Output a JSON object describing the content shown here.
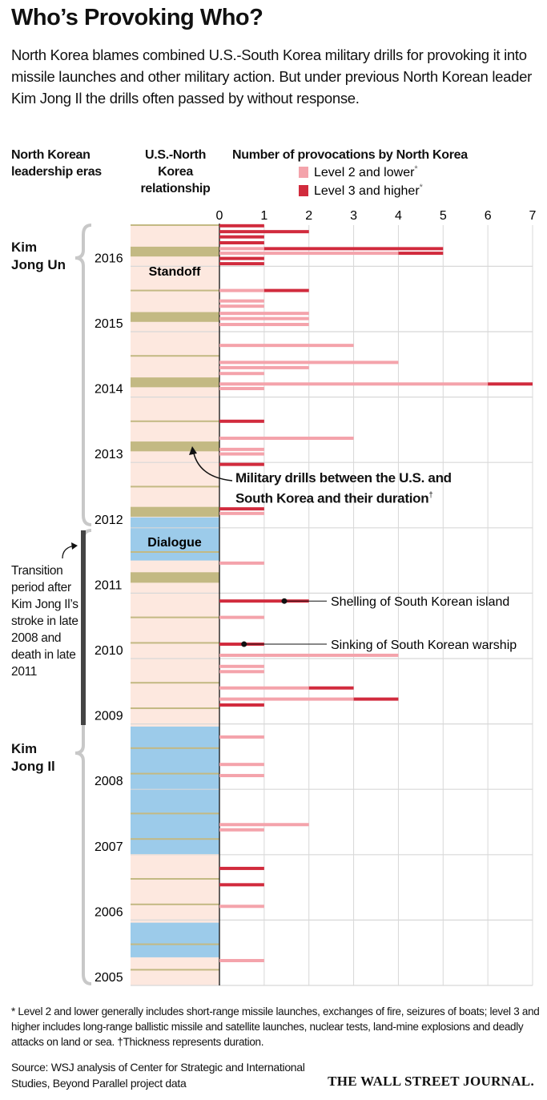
{
  "header": {
    "title": "Who’s Provoking Who?",
    "subtitle": "North Korea blames combined U.S.-South Korea military drills for provoking it into missile launches and other military action. But under previous North Korean leader Kim Jong Il the drills often passed by without response."
  },
  "column_headers": {
    "eras": "North Korean leadership eras",
    "relationship": "U.S.-North Korea relationship",
    "provocations": "Number of provocations by North Korea"
  },
  "chart_data": {
    "type": "bar",
    "orientation": "horizontal",
    "stacked": true,
    "series": [
      {
        "name": "Level 2 and lower",
        "marker": "*",
        "color": "#f4a3ab",
        "values": [
          0,
          0,
          0,
          0,
          1,
          4,
          0,
          0,
          1,
          1,
          1,
          2,
          2,
          2,
          3,
          4,
          2,
          1,
          6,
          1,
          0,
          3,
          1,
          1,
          0,
          0,
          1,
          1,
          0,
          1,
          0,
          4,
          1,
          1,
          2,
          3,
          0,
          1,
          1,
          1,
          2,
          1,
          0,
          0,
          1,
          1
        ]
      },
      {
        "name": "Level 3 and higher",
        "marker": "*",
        "color": "#d12b3d",
        "values": [
          1,
          2,
          1,
          1,
          4,
          1,
          1,
          1,
          1,
          0,
          0,
          0,
          0,
          0,
          0,
          0,
          0,
          0,
          1,
          0,
          1,
          0,
          0,
          0,
          1,
          1,
          0,
          0,
          2,
          0,
          1,
          0,
          0,
          0,
          1,
          1,
          1,
          0,
          0,
          0,
          0,
          0,
          1,
          1,
          0,
          0
        ]
      }
    ],
    "y": [
      2016.62,
      2016.53,
      2016.45,
      2016.36,
      2016.27,
      2016.2,
      2016.12,
      2016.04,
      2015.63,
      2015.47,
      2015.39,
      2015.28,
      2015.2,
      2015.11,
      2014.79,
      2014.53,
      2014.45,
      2014.36,
      2014.2,
      2014.13,
      2013.63,
      2013.37,
      2013.2,
      2013.13,
      2012.97,
      2012.29,
      2012.22,
      2011.46,
      2010.88,
      2010.63,
      2010.22,
      2010.05,
      2009.88,
      2009.8,
      2009.55,
      2009.38,
      2009.29,
      2008.8,
      2008.38,
      2008.21,
      2007.46,
      2007.38,
      2006.79,
      2006.54,
      2006.21,
      2005.38
    ],
    "xlim": [
      0,
      7
    ],
    "xticks": [
      0,
      1,
      2,
      3,
      4,
      5,
      6,
      7
    ],
    "ylim": [
      2005,
      2016.63
    ],
    "yticks": [
      2005,
      2006,
      2007,
      2008,
      2009,
      2010,
      2011,
      2012,
      2013,
      2014,
      2015,
      2016
    ],
    "grid": true,
    "relationship": {
      "standoff_label": "Standoff",
      "dialogue_label": "Dialogue",
      "standoff_color": "#fde8df",
      "dialogue_color": "#9ccbea",
      "drill_color": "#c3b983",
      "dialogue_periods": [
        [
          2011.5,
          2012.16
        ],
        [
          2007.01,
          2008.96
        ],
        [
          2005.43,
          2005.96
        ]
      ],
      "drills": [
        [
          2016.15,
          2016.3
        ],
        [
          2015.15,
          2015.3
        ],
        [
          2014.15,
          2014.3
        ],
        [
          2013.17,
          2013.32
        ],
        [
          2012.17,
          2012.32
        ],
        [
          2011.16,
          2011.32
        ],
        [
          2016.62,
          2016.64
        ],
        [
          2015.62,
          2015.64
        ],
        [
          2014.62,
          2014.64
        ],
        [
          2013.62,
          2013.64
        ],
        [
          2012.62,
          2012.64
        ],
        [
          2011.62,
          2011.64
        ],
        [
          2010.62,
          2010.64
        ],
        [
          2009.62,
          2009.64
        ],
        [
          2008.62,
          2008.64
        ],
        [
          2007.62,
          2007.64
        ],
        [
          2006.62,
          2006.64
        ],
        [
          2005.62,
          2005.64
        ],
        [
          2010.23,
          2010.25
        ],
        [
          2009.23,
          2009.25
        ],
        [
          2008.23,
          2008.25
        ],
        [
          2007.23,
          2007.25
        ],
        [
          2006.23,
          2006.25
        ],
        [
          2005.23,
          2005.25
        ]
      ]
    },
    "eras": [
      {
        "label": "Kim Jong Un"
      },
      {
        "label": "Kim Jong Il"
      }
    ],
    "transition": "Transition period after Kim Jong Il’s stroke in late 2008 and death in late 2011",
    "drill_note": {
      "text": "Military drills between the U.S. and South Korea and their duration",
      "marker": "†"
    },
    "annotations": [
      {
        "text": "Shelling of South Korean island",
        "x": 1.45,
        "y": 2010.88
      },
      {
        "text": "Sinking of South Korean warship",
        "x": 0.55,
        "y": 2010.22
      }
    ]
  },
  "footnote": "* Level 2 and lower generally includes short-range missile launches, exchanges of fire, seizures of boats; level 3 and higher includes long-range ballistic missile and satellite launches, nuclear tests, land-mine explosions and deadly attacks on land or sea. †Thickness represents duration.",
  "source": "Source: WSJ analysis of Center for Strategic and International Studies, Beyond Parallel project data",
  "logo": "THE WALL STREET JOURNAL."
}
